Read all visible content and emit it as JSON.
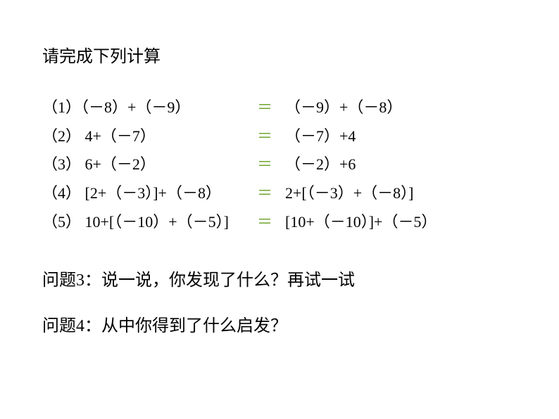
{
  "header": "请完成下列计算",
  "equations": [
    {
      "left": "（1）（－8）+（－9）",
      "equals": "＝",
      "right": "（－9）+（－8）"
    },
    {
      "left": "（2） 4+（－7）",
      "equals": "＝",
      "right": "（－7）+4"
    },
    {
      "left": "（3） 6+（－2）",
      "equals": "＝",
      "right": "（－2）+6"
    },
    {
      "left": "（4） [2+（－3）]+（－8）",
      "equals": "＝",
      "right": "2+[（－3）+（－8）]"
    },
    {
      "left": "（5） 10+[（－10）+（－5）]",
      "equals": "＝",
      "right": "[10+（－10）]+（－5）"
    }
  ],
  "question3": "问题3：说一说，你发现了什么？再试一试",
  "question4": "问题4：从中你得到了什么启发？",
  "colors": {
    "text": "#000000",
    "equals": "#6fa52e",
    "background": "#ffffff"
  },
  "typography": {
    "header_fontsize": 24,
    "equation_fontsize": 22,
    "question_fontsize": 24,
    "font_family": "SimSun"
  }
}
